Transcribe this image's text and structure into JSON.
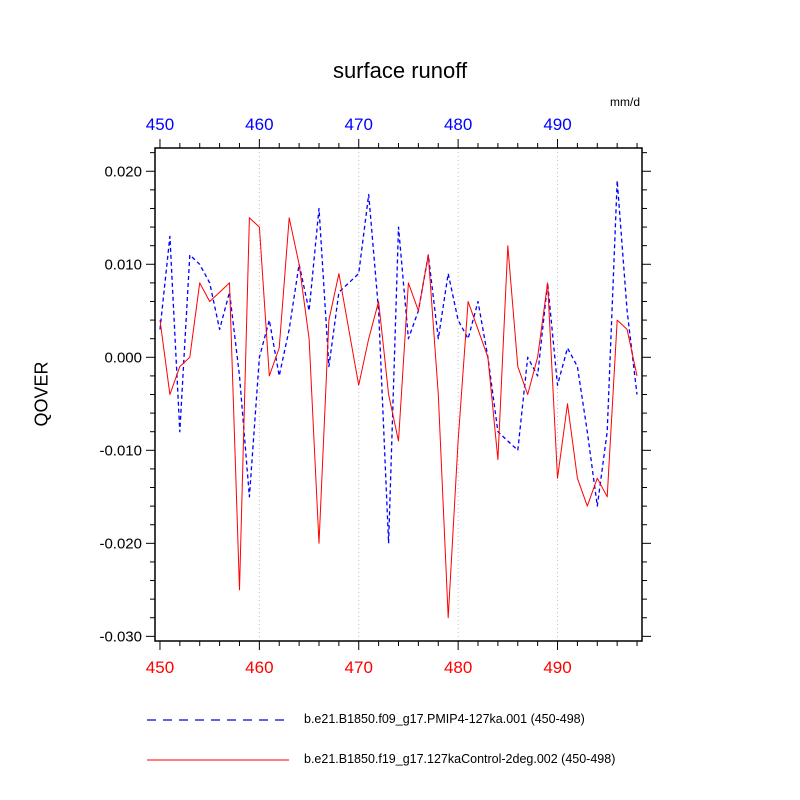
{
  "title": "surface runoff",
  "unit_label": "mm/d",
  "ylabel": "QOVER",
  "axes": {
    "xlim": [
      449.5,
      498.5
    ],
    "ylim": [
      -0.0305,
      0.0225
    ],
    "grid_x": [
      460,
      470,
      480,
      490
    ],
    "grid_color": "#c0c0c0",
    "top": {
      "color": "#0000ff",
      "values": [
        450,
        460,
        470,
        480,
        490
      ],
      "labels": [
        "450",
        "460",
        "470",
        "480",
        "490"
      ]
    },
    "bottom": {
      "color": "#ff0000",
      "values": [
        450,
        460,
        470,
        480,
        490
      ],
      "labels": [
        "450",
        "460",
        "470",
        "480",
        "490"
      ]
    },
    "left": {
      "color": "#000000",
      "values": [
        0.02,
        0.01,
        0.0,
        -0.01,
        -0.02,
        -0.03
      ],
      "labels": [
        "0.020",
        "0.010",
        "0.000",
        "-0.010",
        "-0.020",
        "-0.030"
      ]
    }
  },
  "chart_data": {
    "type": "line",
    "title": "surface runoff",
    "xlabel": "",
    "ylabel": "QOVER",
    "unit": "mm/d",
    "xlim": [
      450,
      498
    ],
    "ylim": [
      -0.03,
      0.02
    ],
    "grid": "vertical-dotted at 460,470,480,490",
    "legend_position": "bottom",
    "x": [
      450,
      451,
      452,
      453,
      454,
      455,
      456,
      457,
      458,
      459,
      460,
      461,
      462,
      463,
      464,
      465,
      466,
      467,
      468,
      469,
      470,
      471,
      472,
      473,
      474,
      475,
      476,
      477,
      478,
      479,
      480,
      481,
      482,
      483,
      484,
      485,
      486,
      487,
      488,
      489,
      490,
      491,
      492,
      493,
      494,
      495,
      496,
      497,
      498
    ],
    "series": [
      {
        "name": "b.e21.B1850.f09_g17.PMIP4-127ka.001 (450-498)",
        "color": "#0000ff",
        "style": "dashed",
        "values": [
          0.003,
          0.013,
          -0.008,
          0.011,
          0.01,
          0.008,
          0.003,
          0.007,
          -0.002,
          -0.015,
          0.0,
          0.004,
          -0.002,
          0.003,
          0.01,
          0.005,
          0.016,
          -0.001,
          0.007,
          0.008,
          0.009,
          0.0175,
          0.005,
          -0.02,
          0.014,
          0.002,
          0.005,
          0.011,
          0.002,
          0.009,
          0.004,
          0.002,
          0.006,
          0.0,
          -0.008,
          -0.009,
          -0.01,
          0.0,
          -0.002,
          0.008,
          -0.003,
          0.001,
          -0.001,
          -0.008,
          -0.016,
          -0.008,
          0.019,
          0.005,
          -0.004
        ]
      },
      {
        "name": "b.e21.B1850.f19_g17.127kaControl-2deg.002 (450-498)",
        "color": "#ff0000",
        "style": "solid",
        "values": [
          0.004,
          -0.004,
          -0.001,
          0.0,
          0.008,
          0.006,
          0.007,
          0.008,
          -0.025,
          0.015,
          0.014,
          -0.002,
          0.001,
          0.015,
          0.01,
          0.002,
          -0.02,
          0.004,
          0.009,
          0.003,
          -0.003,
          0.002,
          0.006,
          -0.004,
          -0.009,
          0.008,
          0.005,
          0.011,
          -0.004,
          -0.028,
          -0.009,
          0.006,
          0.003,
          0.0,
          -0.011,
          0.012,
          -0.001,
          -0.004,
          0.0,
          0.008,
          -0.013,
          -0.005,
          -0.013,
          -0.016,
          -0.013,
          -0.015,
          0.004,
          0.003,
          -0.002
        ]
      }
    ]
  }
}
